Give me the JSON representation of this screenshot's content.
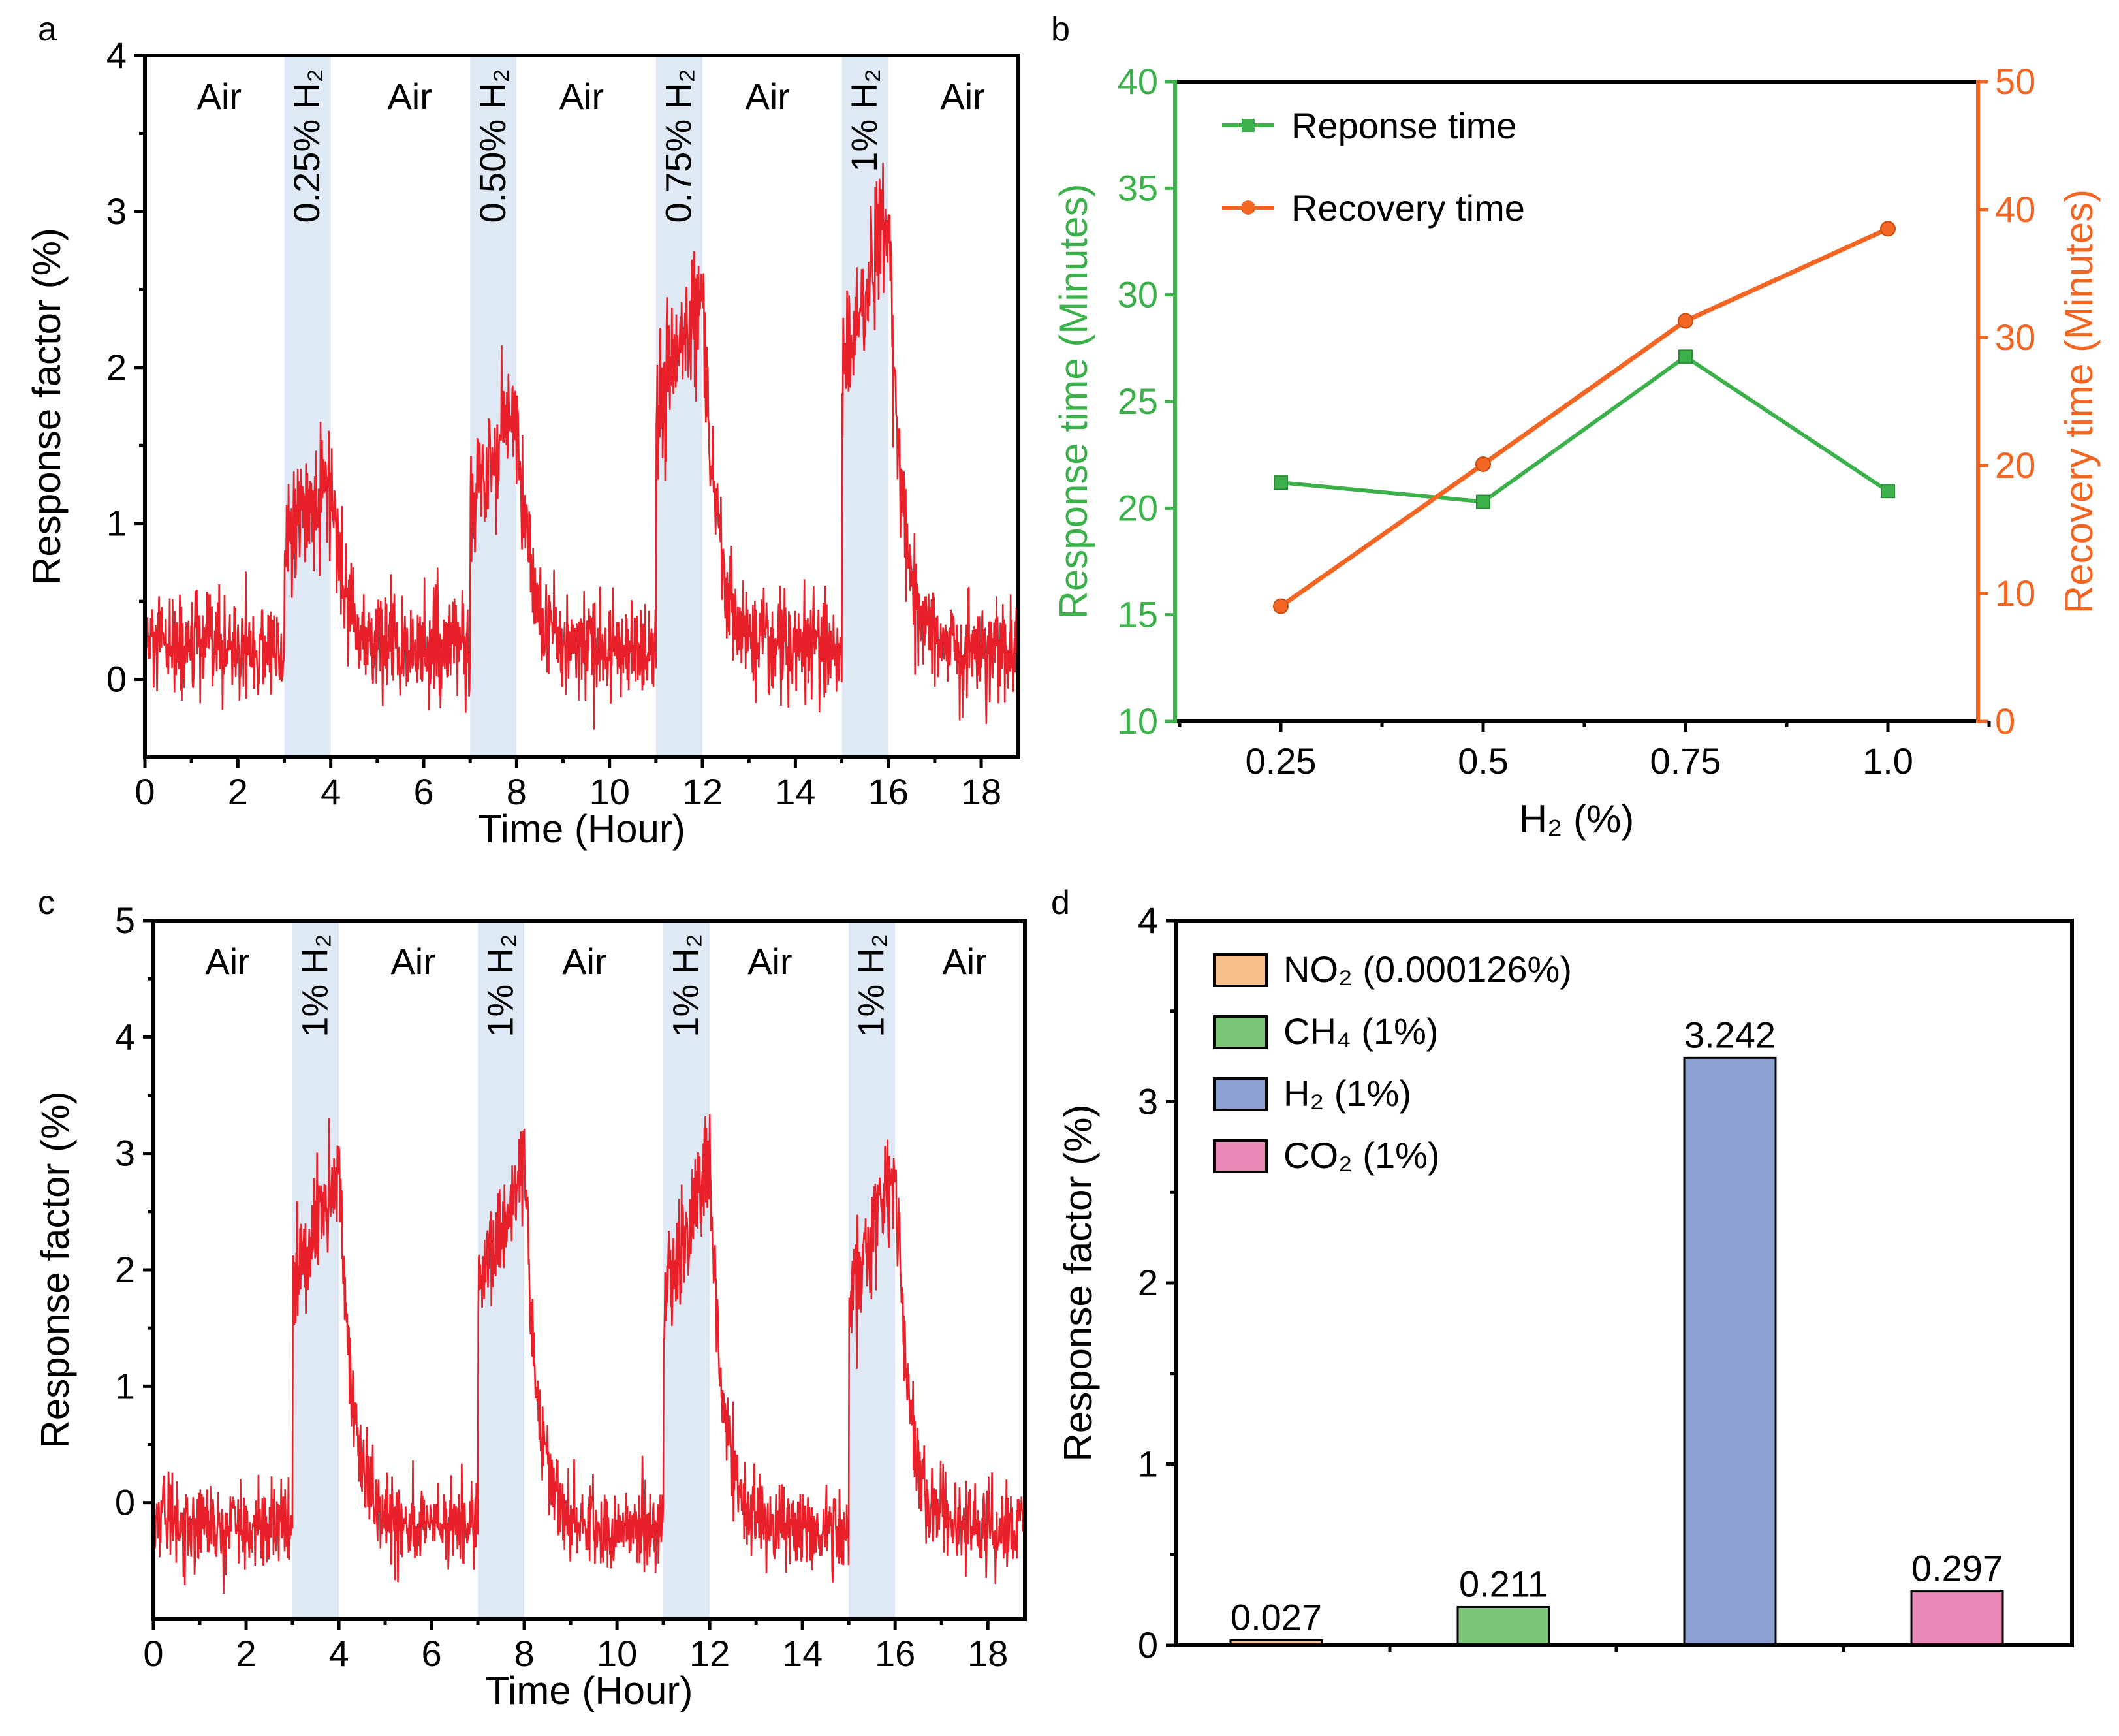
{
  "colors": {
    "trace": "#e8202a",
    "band": "#dfe9f5",
    "response": "#3cb04a",
    "recovery": "#f26522",
    "bar_no2": "#f8c08a",
    "bar_ch4": "#7cc576",
    "bar_h2": "#8b9fd1",
    "bar_co2": "#e889b8"
  },
  "panel_letters": [
    "a",
    "b",
    "c",
    "d"
  ],
  "chart_data": [
    {
      "id": "a",
      "type": "line",
      "xlabel": "Time (Hour)",
      "ylabel": "Response factor (%)",
      "xlim": [
        0,
        18.8
      ],
      "ylim": [
        -0.5,
        4
      ],
      "xticks": [
        0,
        2,
        4,
        6,
        8,
        10,
        12,
        14,
        16,
        18
      ],
      "yticks": [
        0,
        1,
        2,
        3,
        4
      ],
      "shaded_intervals": [
        {
          "x": [
            3,
            4
          ],
          "label": "0.25% H₂"
        },
        {
          "x": [
            7,
            8
          ],
          "label": "0.50% H₂"
        },
        {
          "x": [
            11,
            12
          ],
          "label": "0.75% H₂"
        },
        {
          "x": [
            15,
            16
          ],
          "label": "1% H₂"
        }
      ],
      "region_labels": [
        {
          "x": 1.6,
          "label": "Air"
        },
        {
          "x": 5.7,
          "label": "Air"
        },
        {
          "x": 9.4,
          "label": "Air"
        },
        {
          "x": 13.4,
          "label": "Air"
        },
        {
          "x": 17.6,
          "label": "Air"
        }
      ],
      "profile": {
        "baseline": 0.2,
        "noise": 0.17,
        "segments": [
          {
            "start": 3,
            "end": 4,
            "peak": 1.05,
            "tail": 1.0
          },
          {
            "start": 7,
            "end": 8,
            "peak": 1.55,
            "tail": 0.9
          },
          {
            "start": 11,
            "end": 12,
            "peak": 2.35,
            "tail": 1.0
          },
          {
            "start": 15,
            "end": 16,
            "peak": 2.85,
            "tail": 1.0
          }
        ]
      }
    },
    {
      "id": "b",
      "type": "line",
      "xlabel": "H₂ (%)",
      "ylabel_left": "Response time (Minutes)",
      "ylabel_right": "Recovery time (Minutes)",
      "categories": [
        "0.25",
        "0.5",
        "0.75",
        "1.0"
      ],
      "ylim_left": [
        10,
        40
      ],
      "ylim_right": [
        0,
        50
      ],
      "yticks_left": [
        10,
        15,
        20,
        25,
        30,
        35,
        40
      ],
      "yticks_right": [
        0,
        10,
        20,
        30,
        40,
        50
      ],
      "series": [
        {
          "name": "Reponse time",
          "axis": "left",
          "marker": "square",
          "values": [
            21.2,
            20.3,
            27.1,
            20.8
          ]
        },
        {
          "name": "Recovery time",
          "axis": "right",
          "marker": "circle",
          "values": [
            9.0,
            20.1,
            31.3,
            38.5
          ]
        }
      ]
    },
    {
      "id": "c",
      "type": "line",
      "xlabel": "Time (Hour)",
      "ylabel": "Response factor (%)",
      "xlim": [
        0,
        18.8
      ],
      "ylim": [
        -1,
        5
      ],
      "xticks": [
        0,
        2,
        4,
        6,
        8,
        10,
        12,
        14,
        16,
        18
      ],
      "yticks": [
        0,
        1,
        2,
        3,
        4,
        5
      ],
      "shaded_intervals": [
        {
          "x": [
            3,
            4
          ],
          "label": "1% H₂"
        },
        {
          "x": [
            7,
            8
          ],
          "label": "1% H₂"
        },
        {
          "x": [
            11,
            12
          ],
          "label": "1% H₂"
        },
        {
          "x": [
            15,
            16
          ],
          "label": "1% H₂"
        }
      ],
      "region_labels": [
        {
          "x": 1.6,
          "label": "Air"
        },
        {
          "x": 5.6,
          "label": "Air"
        },
        {
          "x": 9.3,
          "label": "Air"
        },
        {
          "x": 13.3,
          "label": "Air"
        },
        {
          "x": 17.5,
          "label": "Air"
        }
      ],
      "profile": {
        "baseline": -0.2,
        "noise": 0.18,
        "segments": [
          {
            "start": 3,
            "end": 4,
            "peak": 3.1,
            "tail": 1.0
          },
          {
            "start": 7,
            "end": 8,
            "peak": 3.2,
            "tail": 1.0
          },
          {
            "start": 11,
            "end": 12,
            "peak": 3.1,
            "tail": 1.0
          },
          {
            "start": 15,
            "end": 16,
            "peak": 3.1,
            "tail": 1.0
          }
        ]
      }
    },
    {
      "id": "d",
      "type": "bar",
      "ylabel": "Response factor (%)",
      "ylim": [
        0,
        4
      ],
      "yticks": [
        0,
        1,
        2,
        3,
        4
      ],
      "categories": [
        "NO₂ (0.000126%)",
        "CH₄ (1%)",
        "H₂ (1%)",
        "CO₂ (1%)"
      ],
      "values": [
        0.027,
        0.211,
        3.242,
        0.297
      ],
      "value_labels": [
        "0.027",
        "0.211",
        "3.242",
        "0.297"
      ],
      "legend": [
        "NO₂ (0.000126%)",
        "CH₄ (1%)",
        "H₂ (1%)",
        "CO₂ (1%)"
      ]
    }
  ]
}
